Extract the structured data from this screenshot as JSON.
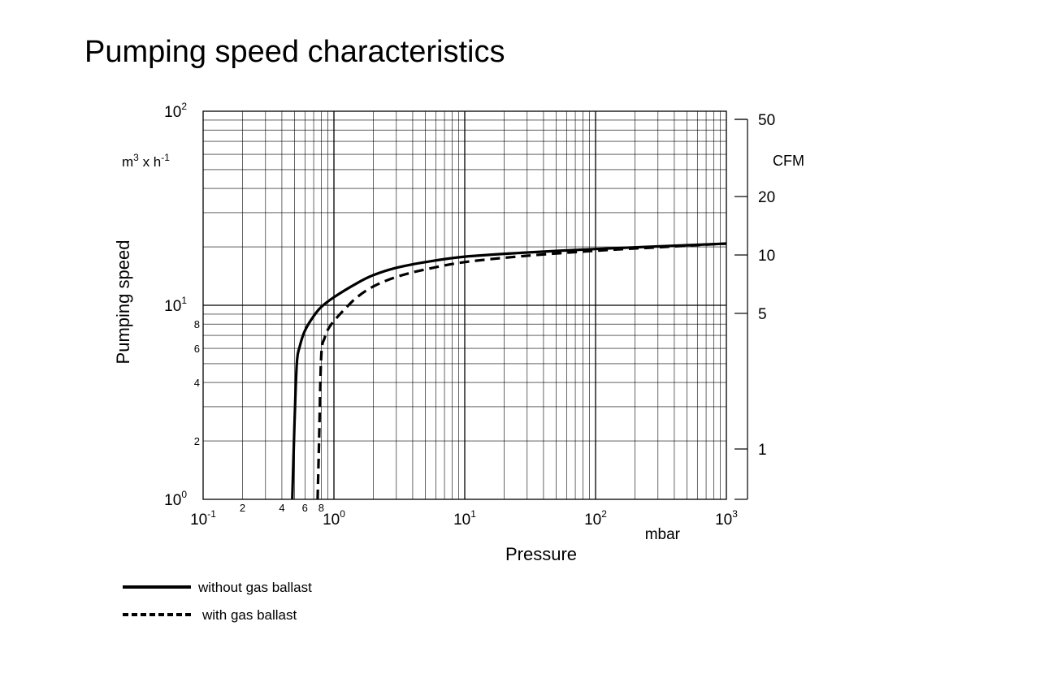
{
  "chart_data": {
    "type": "line",
    "title": "Pumping speed characteristics",
    "xlabel": "Pressure",
    "x_unit": "mbar",
    "x_scale": "log",
    "xlim": [
      0.1,
      1000
    ],
    "x_major_ticks": [
      {
        "base": "10",
        "exp": "-1"
      },
      {
        "base": "10",
        "exp": "0"
      },
      {
        "base": "10",
        "exp": "1"
      },
      {
        "base": "10",
        "exp": "2"
      },
      {
        "base": "10",
        "exp": "3"
      }
    ],
    "x_minor_tick_labels": [
      {
        "value": 0.2,
        "label": "2"
      },
      {
        "value": 0.4,
        "label": "4"
      },
      {
        "value": 0.6,
        "label": "6"
      },
      {
        "value": 0.8,
        "label": "8"
      }
    ],
    "ylabel": "Pumping speed",
    "y_unit": {
      "main": "m",
      "sup1": "3",
      "mid": " x h",
      "sup2": "-1"
    },
    "y_scale": "log",
    "ylim": [
      1,
      100
    ],
    "y_major_ticks": [
      {
        "base": "10",
        "exp": "0"
      },
      {
        "base": "10",
        "exp": "1"
      },
      {
        "base": "10",
        "exp": "2"
      }
    ],
    "y_minor_tick_labels": [
      {
        "value": 2,
        "label": "2"
      },
      {
        "value": 4,
        "label": "4"
      },
      {
        "value": 6,
        "label": "6"
      },
      {
        "value": 8,
        "label": "8"
      }
    ],
    "y2_label": "CFM",
    "y2_ticks": [
      {
        "value": 1,
        "label": "1"
      },
      {
        "value": 5,
        "label": "5"
      },
      {
        "value": 10,
        "label": "10"
      },
      {
        "value": 20,
        "label": "20"
      },
      {
        "value": 50,
        "label": "50"
      }
    ],
    "grid": true,
    "legend_position": "bottom-left",
    "series": [
      {
        "name": "without gas ballast",
        "style": "solid",
        "x": [
          0.48,
          0.5,
          0.52,
          0.55,
          0.6,
          0.7,
          0.8,
          1.0,
          1.5,
          2.0,
          3.0,
          5.0,
          10,
          30,
          100,
          300,
          1000
        ],
        "y": [
          1.0,
          2.5,
          5.0,
          6.2,
          7.4,
          8.8,
          9.8,
          11.0,
          13.0,
          14.3,
          15.6,
          16.7,
          17.8,
          18.7,
          19.5,
          20.1,
          20.8
        ]
      },
      {
        "name": "with gas ballast",
        "style": "dashed",
        "x": [
          0.75,
          0.77,
          0.8,
          0.85,
          0.9,
          1.0,
          1.2,
          1.5,
          2.0,
          3.0,
          5.0,
          10,
          30,
          100,
          300,
          1000
        ],
        "y": [
          1.0,
          2.0,
          5.5,
          6.8,
          7.5,
          8.3,
          9.5,
          11.0,
          12.5,
          14.0,
          15.3,
          16.7,
          18.0,
          19.1,
          19.9,
          20.8
        ]
      }
    ]
  }
}
